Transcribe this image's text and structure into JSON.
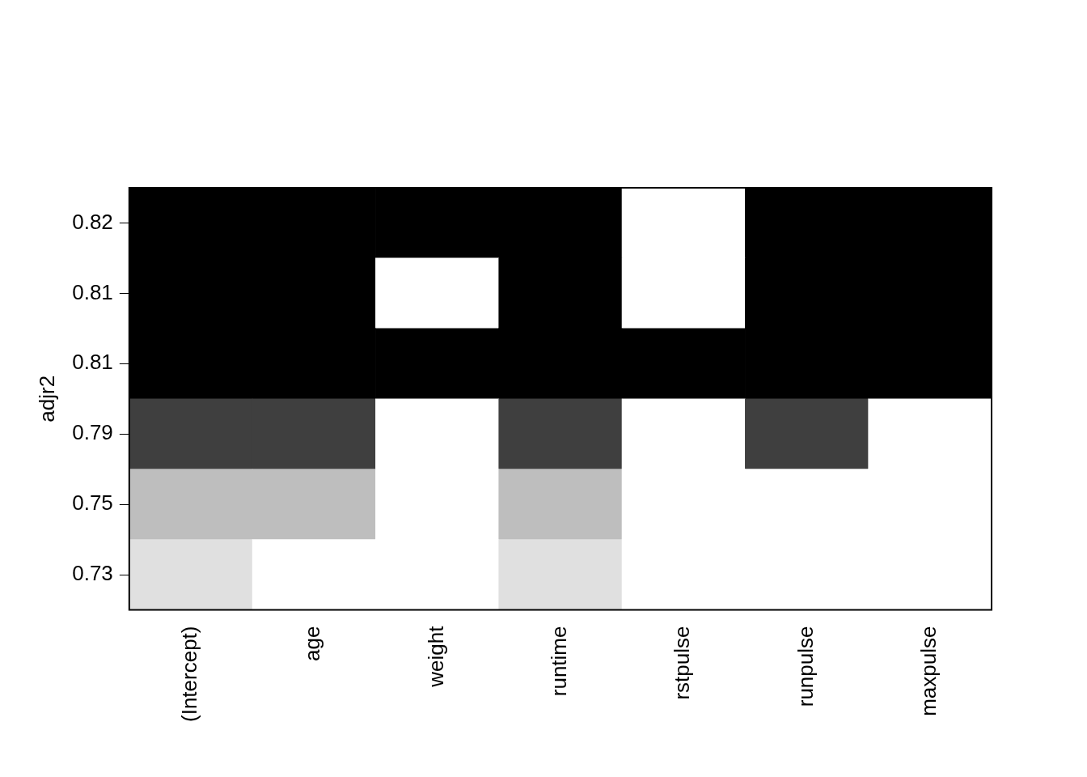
{
  "chart_data": {
    "type": "heatmap",
    "ylabel": "adjr2",
    "categories": [
      "(Intercept)",
      "age",
      "weight",
      "runtime",
      "rstpulse",
      "runpulse",
      "maxpulse"
    ],
    "rows": [
      0.73,
      0.75,
      0.79,
      0.81,
      0.81,
      0.82
    ],
    "cells": [
      [
        1,
        0,
        0,
        1,
        0,
        0,
        0
      ],
      [
        1,
        1,
        0,
        1,
        0,
        0,
        0
      ],
      [
        1,
        1,
        0,
        1,
        0,
        1,
        0
      ],
      [
        1,
        1,
        1,
        1,
        1,
        1,
        1
      ],
      [
        1,
        1,
        0,
        1,
        0,
        1,
        1
      ],
      [
        1,
        1,
        1,
        1,
        0,
        1,
        1
      ]
    ],
    "colors": [
      "#e0e0e0",
      "#bebebe",
      "#3f3f3f",
      "#000000",
      "#000000",
      "#000000"
    ],
    "grid": false
  }
}
